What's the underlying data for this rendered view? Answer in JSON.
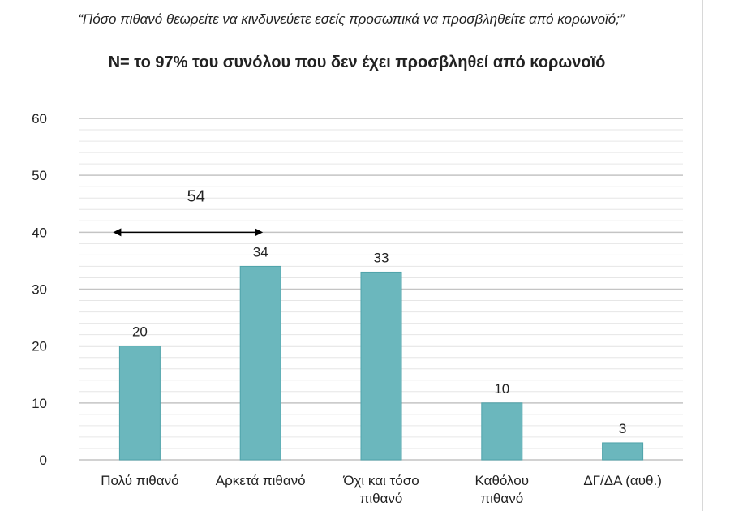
{
  "question": "“Πόσο πιθανό θεωρείτε να κινδυνεύετε εσείς προσωπικά να προσβληθείτε από κορωνοϊό;”",
  "chart_data": {
    "type": "bar",
    "title": "N= το 97% του συνόλου που δεν έχει προσβληθεί από κορωνοϊό",
    "categories": [
      [
        "Πολύ πιθανό"
      ],
      [
        "Αρκετά πιθανό"
      ],
      [
        "Όχι και τόσο",
        "πιθανό"
      ],
      [
        "Καθόλου",
        "πιθανό"
      ],
      [
        "ΔΓ/ΔΑ (αυθ.)"
      ]
    ],
    "values": [
      20,
      34,
      33,
      10,
      3
    ],
    "ylim": [
      0,
      60
    ],
    "yticks": [
      0,
      10,
      20,
      30,
      40,
      50,
      60
    ],
    "minor_step": 2,
    "grid": true,
    "bar_color": "#6bb7bd",
    "annotation": {
      "text": "54",
      "from_category": 0,
      "to_category": 1,
      "y": 40
    }
  }
}
